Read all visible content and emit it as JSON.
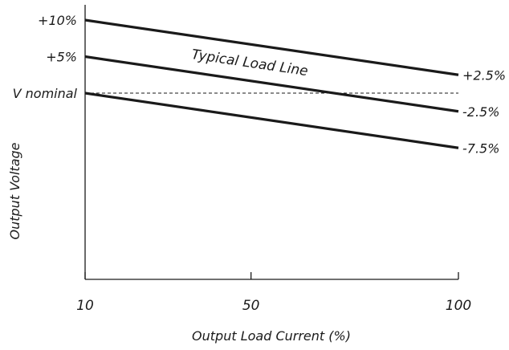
{
  "chart_data": {
    "type": "line",
    "xlabel": "Output Load Current (%)",
    "ylabel": "Output Voltage",
    "xlim": [
      10,
      100
    ],
    "ylim": [
      -30,
      10
    ],
    "x_ticks": [
      10,
      50,
      100
    ],
    "x_tick_labels": [
      "10",
      "50",
      "100"
    ],
    "grid": false,
    "series": [
      {
        "x": [
          10,
          100
        ],
        "y": [
          10,
          2.5
        ]
      },
      {
        "x": [
          10,
          100
        ],
        "y": [
          5,
          -2.5
        ]
      },
      {
        "x": [
          10,
          100
        ],
        "y": [
          0,
          -7.5
        ]
      }
    ],
    "left_labels": [
      {
        "text": "+10%",
        "y": 10
      },
      {
        "text": "+5%",
        "y": 5
      },
      {
        "text": "V nominal",
        "y": 0
      }
    ],
    "right_labels": [
      {
        "text": "+2.5%",
        "y": 2.5
      },
      {
        "text": "-2.5%",
        "y": -2.5
      },
      {
        "text": "-7.5%",
        "y": -7.5
      }
    ],
    "reference_line": {
      "y": 0,
      "style": "dashed"
    },
    "annotation": "Typical Load Line",
    "colors": {
      "line": "#1a1a1a",
      "axis": "#1a1a1a",
      "text": "#1a1a1a"
    }
  }
}
